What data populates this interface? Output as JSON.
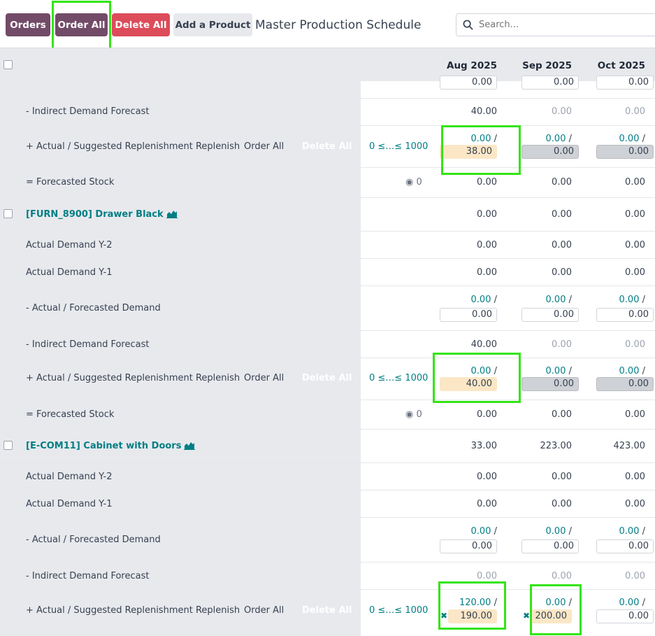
{
  "toolbar": {
    "orders": "Orders",
    "order_all": "Order All",
    "delete_all": "Delete All",
    "add_product": "Add a Product",
    "title": "Master Production Schedule",
    "search_placeholder": "Search..."
  },
  "months": [
    "Aug 2025",
    "Sep 2025",
    "Oct 2025"
  ],
  "colors": {
    "primary": "#714B67",
    "danger": "#DC4C5A",
    "teal": "#017E84",
    "highlight": "#34E414",
    "suggested": "#FBE7C6"
  },
  "top_partial": [
    "0.00",
    "0.00",
    "0.00"
  ],
  "section1": {
    "indirect": {
      "label": "- Indirect Demand Forecast",
      "values": [
        "40.00",
        "0.00",
        "0.00"
      ]
    },
    "replenish": {
      "label": "+ Actual / Suggested Replenishment",
      "replenish_link": "Replenish",
      "order_all": "Order All",
      "delete_all": "Delete All",
      "range": "0 ≤…≤ 1000",
      "actual": [
        "0.00",
        "0.00",
        "0.00"
      ],
      "slash": "/",
      "suggested": [
        "38.00",
        "0.00",
        "0.00"
      ]
    },
    "forecasted": {
      "label": "= Forecasted Stock",
      "count": "0",
      "values": [
        "0.00",
        "0.00",
        "0.00"
      ]
    }
  },
  "product2": {
    "name": "[FURN_8900] Drawer Black",
    "values": [
      "0.00",
      "0.00",
      "0.00"
    ],
    "demand_y2": {
      "label": "Actual Demand Y-2",
      "values": [
        "0.00",
        "0.00",
        "0.00"
      ]
    },
    "demand_y1": {
      "label": "Actual Demand Y-1",
      "values": [
        "0.00",
        "0.00",
        "0.00"
      ]
    },
    "forecast": {
      "label": "- Actual / Forecasted Demand",
      "actual": [
        "0.00",
        "0.00",
        "0.00"
      ],
      "inputs": [
        "0.00",
        "0.00",
        "0.00"
      ]
    },
    "indirect": {
      "label": "- Indirect Demand Forecast",
      "values": [
        "40.00",
        "0.00",
        "0.00"
      ]
    },
    "replenish": {
      "label": "+ Actual / Suggested Replenishment",
      "replenish_link": "Replenish",
      "order_all": "Order All",
      "delete_all": "Delete All",
      "range": "0 ≤…≤ 1000",
      "actual": [
        "0.00",
        "0.00",
        "0.00"
      ],
      "suggested": [
        "40.00",
        "0.00",
        "0.00"
      ]
    },
    "forecasted": {
      "label": "= Forecasted Stock",
      "count": "0",
      "values": [
        "0.00",
        "0.00",
        "0.00"
      ]
    }
  },
  "product3": {
    "name": "[E-COM11] Cabinet with Doors",
    "values": [
      "33.00",
      "223.00",
      "423.00"
    ],
    "demand_y2": {
      "label": "Actual Demand Y-2",
      "values": [
        "0.00",
        "0.00",
        "0.00"
      ]
    },
    "demand_y1": {
      "label": "Actual Demand Y-1",
      "values": [
        "0.00",
        "0.00",
        "0.00"
      ]
    },
    "forecast": {
      "label": "- Actual / Forecasted Demand",
      "actual": [
        "0.00",
        "0.00",
        "0.00"
      ],
      "inputs": [
        "0.00",
        "0.00",
        "0.00"
      ]
    },
    "indirect": {
      "label": "- Indirect Demand Forecast",
      "values": [
        "0.00",
        "0.00",
        "0.00"
      ]
    },
    "replenish": {
      "label": "+ Actual / Suggested Replenishment",
      "replenish_link": "Replenish",
      "order_all": "Order All",
      "delete_all": "Delete All",
      "range": "0 ≤…≤ 1000",
      "actual": [
        "120.00",
        "0.00",
        "0.00"
      ],
      "suggested": [
        "190.00",
        "200.00",
        "0.00"
      ]
    }
  }
}
